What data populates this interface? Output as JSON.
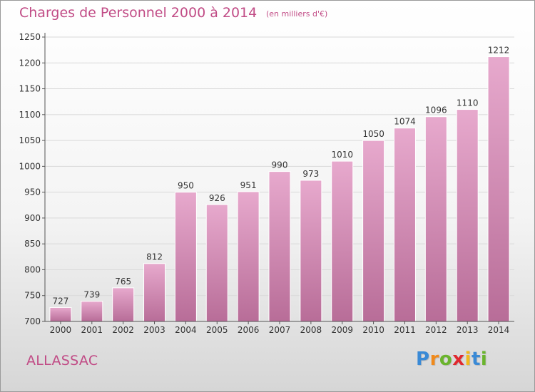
{
  "title": "Charges de Personnel 2000 à 2014",
  "subtitle": "(en milliers d'€)",
  "commune": "ALLASSAC",
  "logo": {
    "text": "Proxiti",
    "letter_colors": [
      "#3a8ad6",
      "#f08a1c",
      "#6ab42d",
      "#e0282e",
      "#f2b81c",
      "#3a8ad6",
      "#6ab42d"
    ]
  },
  "colors": {
    "accent": "#c14c86",
    "bar_top": "#e7a9cd",
    "bar_bottom": "#b86d98",
    "axis": "#555555",
    "grid": "#d9d9d9"
  },
  "chart_data": {
    "type": "bar",
    "categories": [
      "2000",
      "2001",
      "2002",
      "2003",
      "2004",
      "2005",
      "2006",
      "2007",
      "2008",
      "2009",
      "2010",
      "2011",
      "2012",
      "2013",
      "2014"
    ],
    "values": [
      727,
      739,
      765,
      812,
      950,
      926,
      951,
      990,
      973,
      1010,
      1050,
      1074,
      1096,
      1110,
      1212
    ],
    "ylim": [
      700,
      1250
    ],
    "yticks": [
      700,
      750,
      800,
      850,
      900,
      950,
      1000,
      1050,
      1100,
      1150,
      1200,
      1250
    ],
    "xlabel": "",
    "ylabel": "",
    "data_labels": true,
    "grid": true
  }
}
